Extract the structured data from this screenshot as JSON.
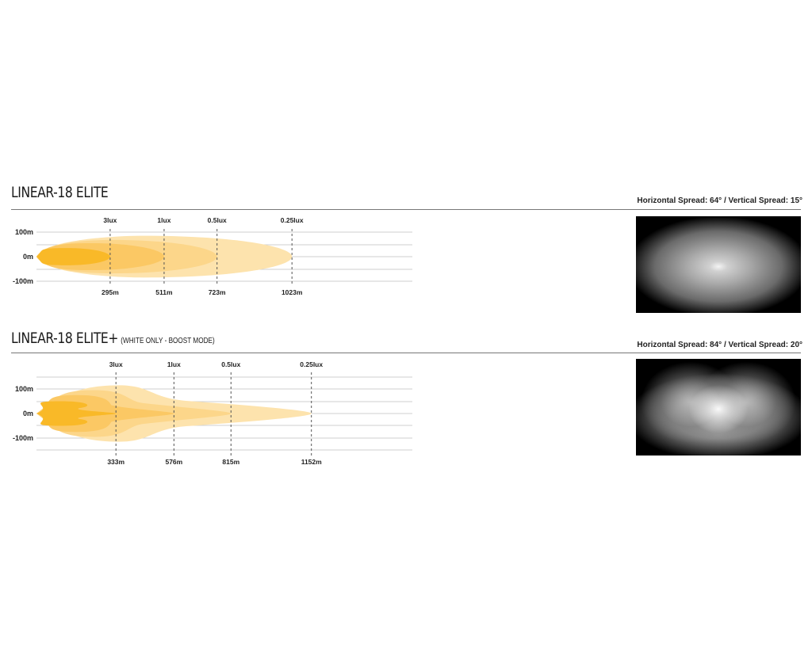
{
  "chart_data": [
    {
      "type": "area",
      "title": "LINEAR-18 ELITE",
      "subtitle": "",
      "spread_text": "Horizontal Spread: 64° / Vertical Spread: 15°",
      "y_ticks": [
        "100m",
        "0m",
        "-100m"
      ],
      "ylim": [
        -100,
        100
      ],
      "xlim": [
        0,
        1505
      ],
      "grid": true,
      "isolux": [
        {
          "label": "3lux",
          "distance": 295,
          "distance_label": "295m",
          "half_width_m": 35
        },
        {
          "label": "1lux",
          "distance": 511,
          "distance_label": "511m",
          "half_width_m": 55
        },
        {
          "label": "0.5lux",
          "distance": 723,
          "distance_label": "723m",
          "half_width_m": 68
        },
        {
          "label": "0.25lux",
          "distance": 1023,
          "distance_label": "1023m",
          "half_width_m": 85
        }
      ],
      "colors": [
        "#f9b928",
        "#fbc864",
        "#fcd68a",
        "#fde3ad"
      ]
    },
    {
      "type": "area",
      "title": "LINEAR-18 ELITE+",
      "subtitle": "(WHITE ONLY - BOOST MODE)",
      "spread_text": "Horizontal Spread: 84° / Vertical Spread: 20°",
      "y_ticks": [
        "100m",
        "0m",
        "-100m"
      ],
      "ylim": [
        -150,
        150
      ],
      "xlim": [
        0,
        1575
      ],
      "grid": true,
      "isolux": [
        {
          "label": "3lux",
          "distance": 333,
          "distance_label": "333m",
          "half_width_m": 50
        },
        {
          "label": "1lux",
          "distance": 576,
          "distance_label": "576m",
          "half_width_m": 75
        },
        {
          "label": "0.5lux",
          "distance": 815,
          "distance_label": "815m",
          "half_width_m": 95
        },
        {
          "label": "0.25lux",
          "distance": 1152,
          "distance_label": "1152m",
          "half_width_m": 115
        }
      ],
      "colors": [
        "#f9b928",
        "#fbc864",
        "#fcd68a",
        "#fde3ad"
      ]
    }
  ]
}
